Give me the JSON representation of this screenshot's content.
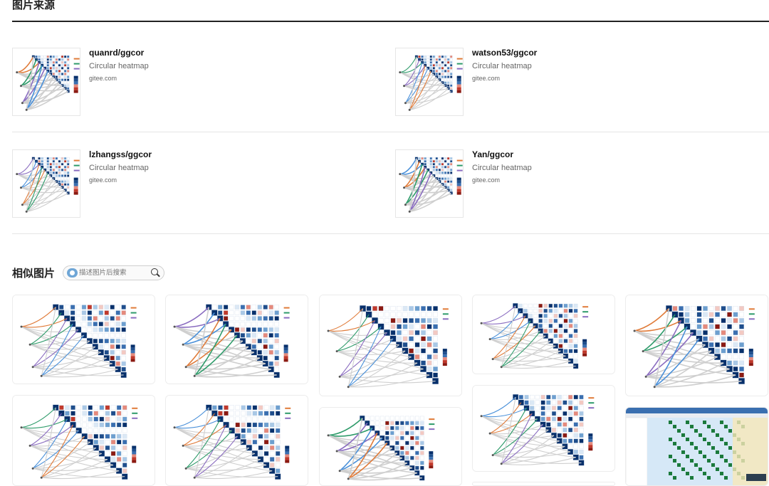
{
  "sources_section": {
    "title": "图片来源"
  },
  "sources": [
    {
      "title": "quanrd/ggcor",
      "desc": "Circular heatmap",
      "site": "gitee.com",
      "thumb_icon": "correlation-heatmap-thumbnail"
    },
    {
      "title": "watson53/ggcor",
      "desc": "Circular heatmap",
      "site": "gitee.com",
      "thumb_icon": "correlation-heatmap-thumbnail"
    },
    {
      "title": "lzhangss/ggcor",
      "desc": "Circular heatmap",
      "site": "gitee.com",
      "thumb_icon": "correlation-heatmap-thumbnail"
    },
    {
      "title": "Yan/ggcor",
      "desc": "Circular heatmap",
      "site": "gitee.com",
      "thumb_icon": "correlation-heatmap-thumbnail"
    }
  ],
  "similar_section": {
    "title": "相似图片",
    "search_placeholder": "描述图片后搜索",
    "camera_icon": "image-search-icon",
    "search_icon": "magnifier-icon"
  },
  "colors": {
    "accent_blue": "#1f4e8c",
    "accent_red": "#c0392b",
    "border": "#e5e5e5"
  }
}
